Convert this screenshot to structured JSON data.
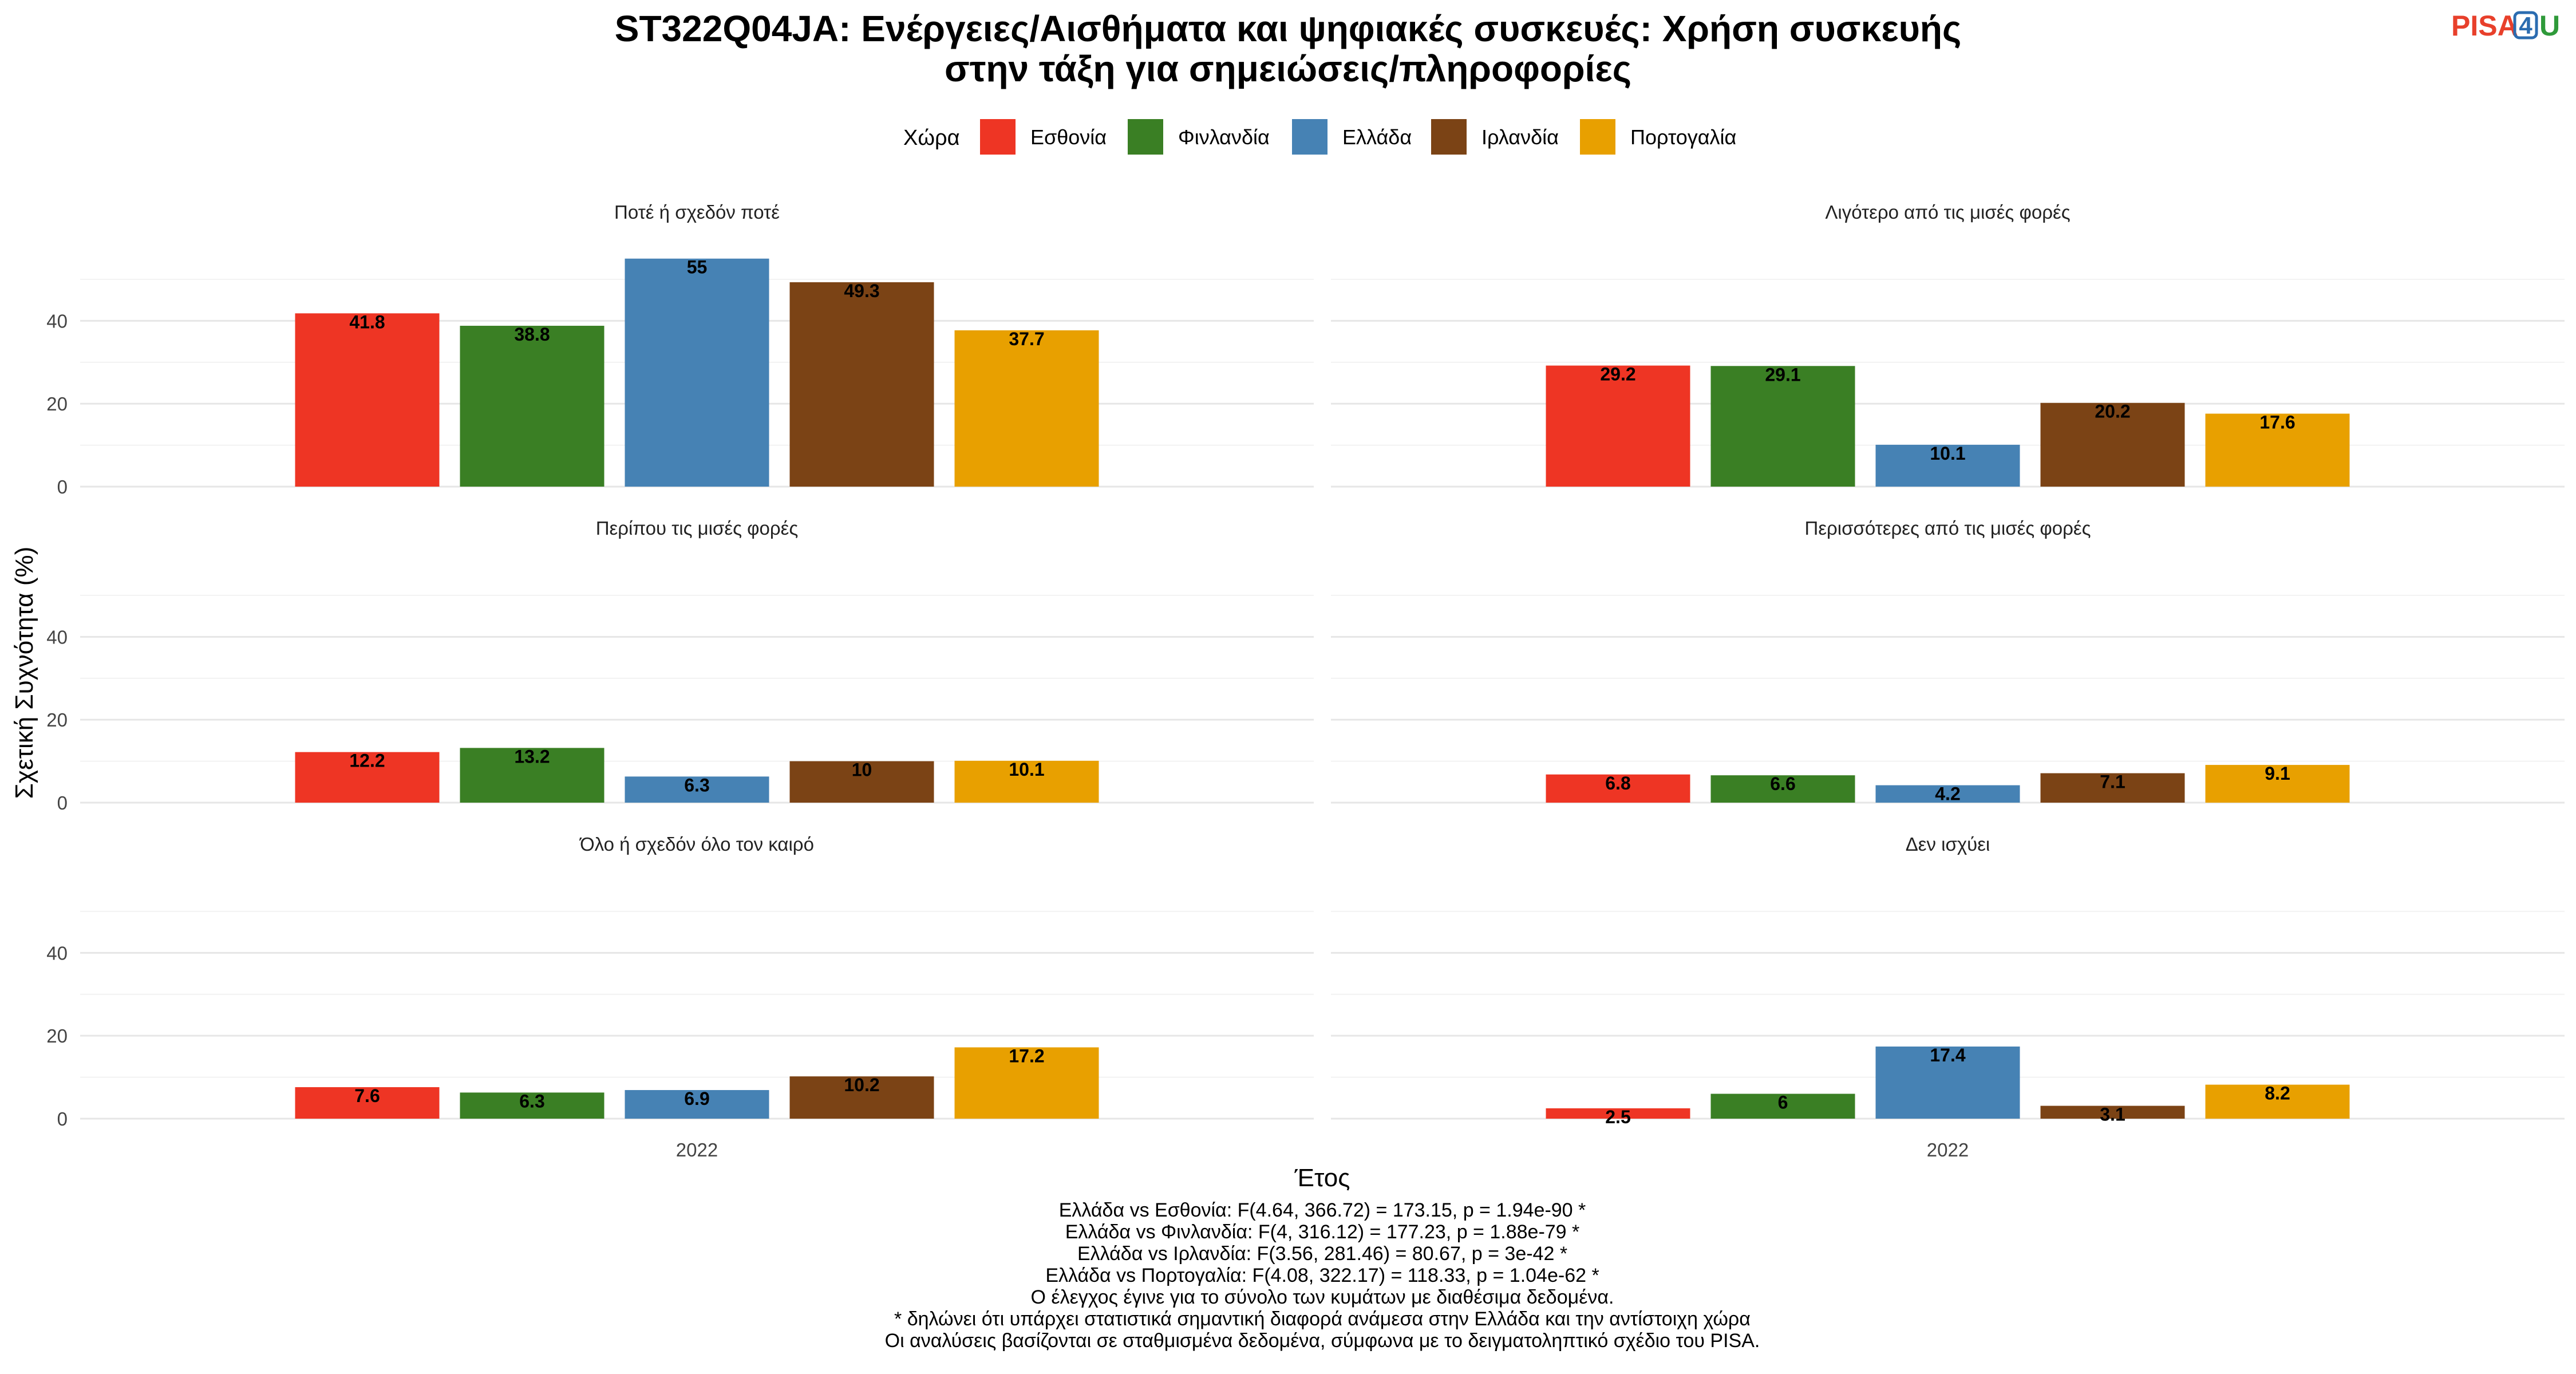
{
  "chart_data": {
    "type": "bar",
    "title_lines": [
      "ST322Q04JA: Ενέργειες/Αισθήματα και ψηφιακές συσκευές: Χρήση συσκευής",
      "στην τάξη για σημειώσεις/πληροφορίες"
    ],
    "legend": {
      "title": "Χώρα",
      "placement": "top",
      "items": [
        {
          "name": "Εσθονία",
          "color": "#ee3524"
        },
        {
          "name": "Φινλανδία",
          "color": "#3a7f24"
        },
        {
          "name": "Ελλάδα",
          "color": "#4682b4"
        },
        {
          "name": "Ιρλανδία",
          "color": "#7b4315"
        },
        {
          "name": "Πορτογαλία",
          "color": "#e8a000"
        }
      ]
    },
    "xlabel": "Έτος",
    "ylabel": "Σχετική Συχνότητα (%)",
    "x_category": "2022",
    "ylim": [
      0,
      58
    ],
    "yticks": [
      "0",
      "20",
      "40"
    ],
    "grid": true,
    "panels": [
      {
        "title": "Ποτέ ή σχεδόν ποτέ",
        "values": [
          41.8,
          38.8,
          55,
          49.3,
          37.7
        ]
      },
      {
        "title": "Λιγότερο από τις μισές φορές",
        "values": [
          29.2,
          29.1,
          10.1,
          20.2,
          17.6
        ]
      },
      {
        "title": "Περίπου τις μισές φορές",
        "values": [
          12.2,
          13.2,
          6.3,
          10,
          10.1
        ]
      },
      {
        "title": "Περισσότερες από τις μισές φορές",
        "values": [
          6.8,
          6.6,
          4.2,
          7.1,
          9.1
        ]
      },
      {
        "title": "Όλο ή σχεδόν όλο τον καιρό",
        "values": [
          7.6,
          6.3,
          6.9,
          10.2,
          17.2
        ]
      },
      {
        "title": "Δεν ισχύει",
        "values": [
          2.5,
          6,
          17.4,
          3.1,
          8.2
        ]
      }
    ],
    "notes": [
      "Ελλάδα vs Εσθονία: F(4.64, 366.72) = 173.15, p = 1.94e-90 *",
      "Ελλάδα vs Φινλανδία: F(4, 316.12) = 177.23, p = 1.88e-79 *",
      "Ελλάδα vs Ιρλανδία: F(3.56, 281.46) = 80.67, p = 3e-42 *",
      "Ελλάδα vs Πορτογαλία: F(4.08, 322.17) = 118.33, p = 1.04e-62 *",
      "Ο έλεγχος έγινε για το σύνολο των κυμάτων με διαθέσιμα δεδομένα.",
      "* δηλώνει ότι υπάρχει στατιστικά σημαντική διαφορά ανάμεσα στην Ελλάδα και την αντίστοιχη χώρα",
      "Οι αναλύσεις βασίζονται σε σταθμισμένα δεδομένα, σύμφωνα με το δειγματοληπτικό σχέδιο του PISA."
    ]
  },
  "logo": {
    "pisa": "PISA",
    "four": "4",
    "u": "U"
  }
}
